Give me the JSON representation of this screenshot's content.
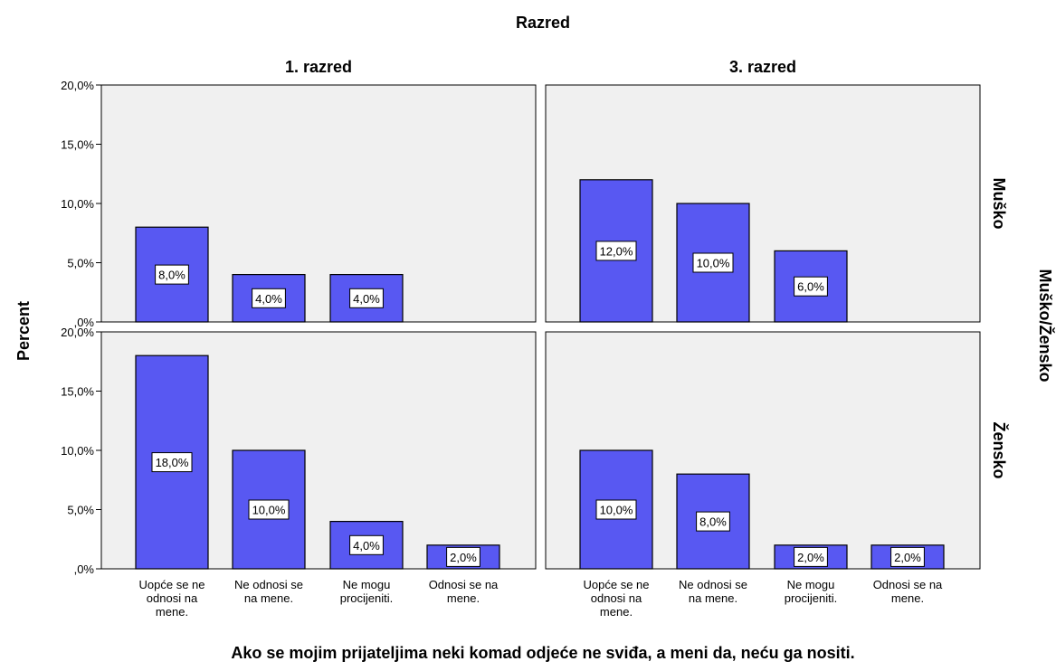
{
  "chart_data": {
    "type": "bar",
    "title": "Razred",
    "xlabel": "Ako se mojim prijateljima neki komad odjeće ne sviđa, a meni da, neću ga nositi.",
    "ylabel": "Percent",
    "row_label": "Muško/Žensko",
    "columns": [
      "1. razred",
      "3. razred"
    ],
    "rows": [
      "Muško",
      "Žensko"
    ],
    "categories": [
      "Uopće se ne odnosi na mene.",
      "Ne odnosi se na mene.",
      "Ne mogu procijeniti.",
      "Odnosi se na mene."
    ],
    "category_lines": [
      [
        "Uopće se ne",
        "odnosi na",
        "mene."
      ],
      [
        "Ne odnosi se",
        "na mene."
      ],
      [
        "Ne mogu",
        "procijeniti."
      ],
      [
        "Odnosi se na",
        "mene."
      ]
    ],
    "ylim": [
      0,
      20
    ],
    "yticks": [
      0,
      5,
      10,
      15,
      20
    ],
    "ytick_labels": [
      ",0%",
      "5,0%",
      "10,0%",
      "15,0%",
      "20,0%"
    ],
    "bar_color": "#5858f2",
    "panel_bg": "#f0f0f0",
    "panels": [
      {
        "column": "1. razred",
        "row": "Muško",
        "values": [
          8,
          4,
          4,
          0
        ],
        "labels": [
          "8,0%",
          "4,0%",
          "4,0%",
          ""
        ]
      },
      {
        "column": "3. razred",
        "row": "Muško",
        "values": [
          12,
          10,
          6,
          0
        ],
        "labels": [
          "12,0%",
          "10,0%",
          "6,0%",
          ""
        ]
      },
      {
        "column": "1. razred",
        "row": "Žensko",
        "values": [
          18,
          10,
          4,
          2
        ],
        "labels": [
          "18,0%",
          "10,0%",
          "4,0%",
          "2,0%"
        ]
      },
      {
        "column": "3. razred",
        "row": "Žensko",
        "values": [
          10,
          8,
          2,
          2
        ],
        "labels": [
          "10,0%",
          "8,0%",
          "2,0%",
          "2,0%"
        ]
      }
    ]
  }
}
